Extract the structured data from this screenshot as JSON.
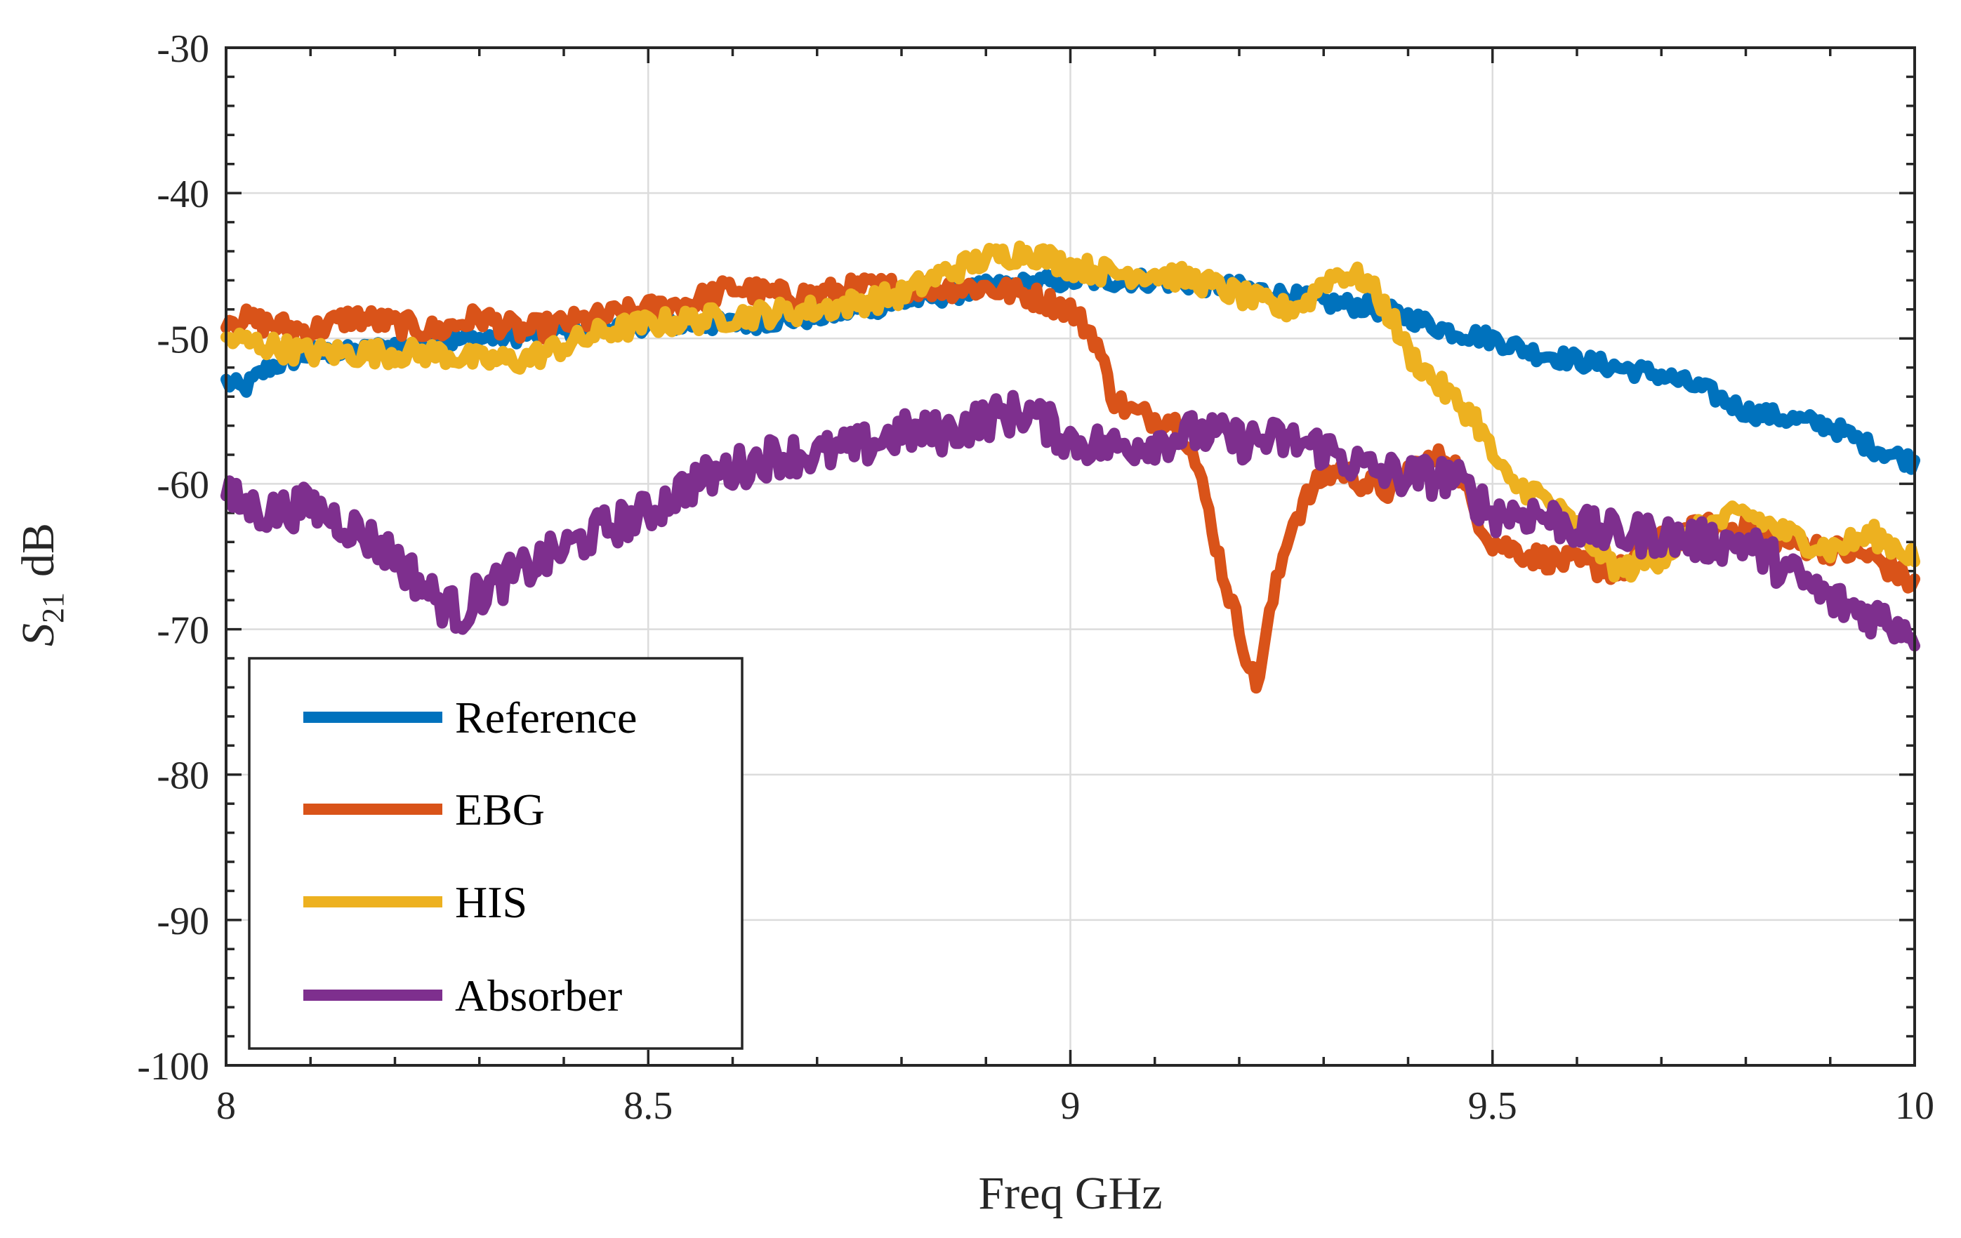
{
  "chart_data": {
    "type": "line",
    "title": "",
    "xlabel": "Freq GHz",
    "ylabel_main": "S",
    "ylabel_sub": "21",
    "ylabel_unit": "dB",
    "xlim": [
      8,
      10
    ],
    "ylim": [
      -100,
      -30
    ],
    "xticks": [
      8,
      8.5,
      9,
      9.5,
      10
    ],
    "xtick_labels": [
      "8",
      "8.5",
      "9",
      "9.5",
      "10"
    ],
    "yticks": [
      -100,
      -90,
      -80,
      -70,
      -60,
      -50,
      -40,
      -30
    ],
    "ytick_labels": [
      "-100",
      "-90",
      "-80",
      "-70",
      "-60",
      "-50",
      "-40",
      "-30"
    ],
    "grid": true,
    "legend_position": "bottom-left",
    "series": [
      {
        "name": "Reference",
        "color": "#0072BD",
        "points": [
          [
            8.0,
            -53
          ],
          [
            8.02,
            -53.5
          ],
          [
            8.05,
            -52
          ],
          [
            8.1,
            -51
          ],
          [
            8.15,
            -51
          ],
          [
            8.2,
            -50.5
          ],
          [
            8.3,
            -50
          ],
          [
            8.4,
            -49.5
          ],
          [
            8.5,
            -49
          ],
          [
            8.6,
            -49
          ],
          [
            8.7,
            -48.5
          ],
          [
            8.8,
            -47.5
          ],
          [
            8.85,
            -47
          ],
          [
            8.9,
            -46.5
          ],
          [
            9.0,
            -46
          ],
          [
            9.1,
            -46
          ],
          [
            9.2,
            -46.5
          ],
          [
            9.3,
            -47.5
          ],
          [
            9.35,
            -47.8
          ],
          [
            9.4,
            -48.5
          ],
          [
            9.45,
            -49.5
          ],
          [
            9.5,
            -50
          ],
          [
            9.55,
            -51
          ],
          [
            9.6,
            -51.5
          ],
          [
            9.65,
            -52
          ],
          [
            9.7,
            -52.5
          ],
          [
            9.75,
            -53.5
          ],
          [
            9.8,
            -55
          ],
          [
            9.85,
            -55.5
          ],
          [
            9.9,
            -56
          ],
          [
            9.95,
            -57.5
          ],
          [
            10.0,
            -58.5
          ]
        ]
      },
      {
        "name": "EBG",
        "color": "#D95319",
        "points": [
          [
            8.0,
            -48.5
          ],
          [
            8.05,
            -49
          ],
          [
            8.1,
            -49.5
          ],
          [
            8.15,
            -48.5
          ],
          [
            8.2,
            -49
          ],
          [
            8.25,
            -49.5
          ],
          [
            8.3,
            -48.5
          ],
          [
            8.35,
            -49.5
          ],
          [
            8.4,
            -49
          ],
          [
            8.45,
            -48.5
          ],
          [
            8.5,
            -48
          ],
          [
            8.55,
            -47.5
          ],
          [
            8.6,
            -46.5
          ],
          [
            8.65,
            -47
          ],
          [
            8.7,
            -47
          ],
          [
            8.75,
            -46.5
          ],
          [
            8.8,
            -46.5
          ],
          [
            8.85,
            -46.5
          ],
          [
            8.9,
            -46.5
          ],
          [
            8.95,
            -47
          ],
          [
            9.0,
            -48
          ],
          [
            9.03,
            -50
          ],
          [
            9.05,
            -54
          ],
          [
            9.07,
            -55
          ],
          [
            9.1,
            -55.5
          ],
          [
            9.12,
            -55.5
          ],
          [
            9.14,
            -57
          ],
          [
            9.16,
            -61
          ],
          [
            9.18,
            -66
          ],
          [
            9.2,
            -70
          ],
          [
            9.22,
            -74
          ],
          [
            9.24,
            -68
          ],
          [
            9.26,
            -63
          ],
          [
            9.28,
            -61
          ],
          [
            9.3,
            -59.5
          ],
          [
            9.32,
            -59
          ],
          [
            9.35,
            -60
          ],
          [
            9.38,
            -60.5
          ],
          [
            9.4,
            -59
          ],
          [
            9.45,
            -58
          ],
          [
            9.48,
            -62
          ],
          [
            9.5,
            -64
          ],
          [
            9.55,
            -65
          ],
          [
            9.6,
            -65.5
          ],
          [
            9.65,
            -66
          ],
          [
            9.7,
            -64
          ],
          [
            9.75,
            -63
          ],
          [
            9.8,
            -63
          ],
          [
            9.85,
            -64
          ],
          [
            9.9,
            -64.5
          ],
          [
            9.95,
            -65
          ],
          [
            10.0,
            -67
          ]
        ]
      },
      {
        "name": "HIS",
        "color": "#EDB120",
        "points": [
          [
            8.0,
            -50
          ],
          [
            8.05,
            -50.5
          ],
          [
            8.1,
            -51
          ],
          [
            8.15,
            -51
          ],
          [
            8.2,
            -51
          ],
          [
            8.25,
            -51
          ],
          [
            8.3,
            -51.5
          ],
          [
            8.35,
            -51.5
          ],
          [
            8.4,
            -50.5
          ],
          [
            8.45,
            -49.5
          ],
          [
            8.5,
            -49
          ],
          [
            8.6,
            -48.5
          ],
          [
            8.7,
            -48
          ],
          [
            8.8,
            -47
          ],
          [
            8.85,
            -45.5
          ],
          [
            8.9,
            -44.5
          ],
          [
            8.95,
            -44
          ],
          [
            9.0,
            -45
          ],
          [
            9.05,
            -45.5
          ],
          [
            9.1,
            -45.5
          ],
          [
            9.15,
            -46
          ],
          [
            9.2,
            -47
          ],
          [
            9.25,
            -48
          ],
          [
            9.28,
            -47.5
          ],
          [
            9.3,
            -46
          ],
          [
            9.32,
            -45.5
          ],
          [
            9.35,
            -46
          ],
          [
            9.38,
            -48.5
          ],
          [
            9.4,
            -51
          ],
          [
            9.45,
            -54
          ],
          [
            9.48,
            -55.5
          ],
          [
            9.5,
            -58
          ],
          [
            9.52,
            -60
          ],
          [
            9.55,
            -60.5
          ],
          [
            9.6,
            -63
          ],
          [
            9.65,
            -66
          ],
          [
            9.7,
            -65
          ],
          [
            9.75,
            -63
          ],
          [
            9.8,
            -62
          ],
          [
            9.85,
            -63.5
          ],
          [
            9.9,
            -64.5
          ],
          [
            9.95,
            -63.5
          ],
          [
            10.0,
            -65
          ]
        ]
      },
      {
        "name": "Absorber",
        "color": "#7E2F8E",
        "points": [
          [
            8.0,
            -61
          ],
          [
            8.05,
            -62
          ],
          [
            8.1,
            -61.5
          ],
          [
            8.15,
            -63
          ],
          [
            8.2,
            -65
          ],
          [
            8.25,
            -68
          ],
          [
            8.28,
            -69
          ],
          [
            8.3,
            -67.5
          ],
          [
            8.35,
            -66
          ],
          [
            8.4,
            -64.5
          ],
          [
            8.45,
            -63
          ],
          [
            8.5,
            -62
          ],
          [
            8.55,
            -60
          ],
          [
            8.6,
            -59
          ],
          [
            8.65,
            -58
          ],
          [
            8.7,
            -58
          ],
          [
            8.75,
            -57.5
          ],
          [
            8.8,
            -56.5
          ],
          [
            8.85,
            -56.5
          ],
          [
            8.9,
            -55.5
          ],
          [
            8.95,
            -55
          ],
          [
            9.0,
            -57
          ],
          [
            9.05,
            -57.5
          ],
          [
            9.1,
            -57
          ],
          [
            9.15,
            -56.5
          ],
          [
            9.2,
            -57
          ],
          [
            9.25,
            -57
          ],
          [
            9.3,
            -57.5
          ],
          [
            9.35,
            -59
          ],
          [
            9.4,
            -59.5
          ],
          [
            9.45,
            -59.5
          ],
          [
            9.5,
            -62
          ],
          [
            9.55,
            -62
          ],
          [
            9.6,
            -63
          ],
          [
            9.65,
            -63.5
          ],
          [
            9.7,
            -63.5
          ],
          [
            9.75,
            -64
          ],
          [
            9.8,
            -64
          ],
          [
            9.85,
            -66
          ],
          [
            9.9,
            -68
          ],
          [
            9.95,
            -69
          ],
          [
            10.0,
            -70
          ]
        ]
      }
    ]
  }
}
